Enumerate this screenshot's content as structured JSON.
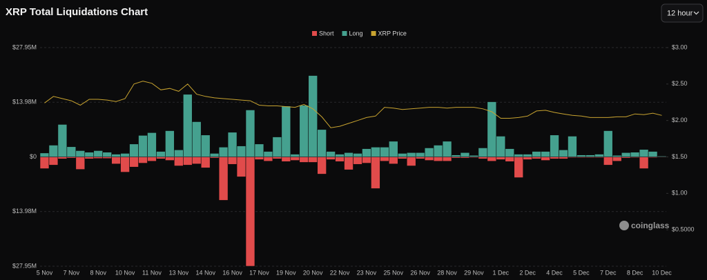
{
  "chart_data": {
    "type": "bar",
    "title": "XRP Total Liquidations Chart",
    "interval": "12 hour",
    "watermark": "coinglass",
    "grid": true,
    "legend": "top",
    "categories": [
      "5 Nov",
      null,
      null,
      "7 Nov",
      null,
      null,
      "8 Nov",
      null,
      null,
      "10 Nov",
      null,
      null,
      "11 Nov",
      null,
      null,
      "13 Nov",
      null,
      null,
      "14 Nov",
      null,
      null,
      "16 Nov",
      null,
      null,
      "17 Nov",
      null,
      null,
      "19 Nov",
      null,
      null,
      "20 Nov",
      null,
      null,
      "22 Nov",
      null,
      null,
      "23 Nov",
      null,
      null,
      "25 Nov",
      null,
      null,
      "26 Nov",
      null,
      null,
      "28 Nov",
      null,
      null,
      "29 Nov",
      null,
      null,
      "1 Dec",
      null,
      null,
      "2 Dec",
      null,
      null,
      "4 Dec",
      null,
      null,
      "5 Dec",
      null,
      null,
      "7 Dec",
      null,
      null,
      "8 Dec",
      null,
      null,
      "10 Dec"
    ],
    "series": [
      {
        "name": "Short",
        "color": "#e14b4b",
        "values": [
          -3.0,
          -2.1,
          -0.5,
          -0.3,
          -3.2,
          -0.5,
          -0.4,
          -0.4,
          -1.8,
          -3.9,
          -2.6,
          -1.6,
          -1.1,
          -0.5,
          -0.9,
          -2.3,
          -2.1,
          -1.8,
          -2.8,
          -0.3,
          -11.1,
          -1.9,
          -5.1,
          -27.95,
          -0.7,
          -1.1,
          -0.5,
          -1.2,
          -0.9,
          -1.4,
          -1.4,
          -4.4,
          -0.7,
          -1.2,
          -3.3,
          -1.9,
          -1.6,
          -8.1,
          -1.1,
          -1.8,
          -0.5,
          -2.3,
          -0.5,
          -0.9,
          -1.1,
          -1.1,
          -0.3,
          -0.3,
          -0.2,
          -0.5,
          -1.1,
          -0.7,
          -1.2,
          -5.3,
          -0.7,
          -0.5,
          -0.9,
          -0.5,
          -0.5,
          -0.2,
          -0.2,
          -0.2,
          -0.2,
          -2.1,
          -1.1,
          -0.3,
          -0.2,
          -3.0,
          -0.2,
          -0.1
        ]
      },
      {
        "name": "Long",
        "color": "#45a18f",
        "values": [
          1.0,
          3.0,
          8.3,
          2.6,
          1.6,
          1.2,
          1.6,
          1.2,
          0.7,
          0.9,
          3.3,
          5.5,
          6.2,
          1.4,
          6.7,
          1.8,
          16.0,
          9.0,
          5.6,
          0.9,
          2.5,
          6.3,
          2.8,
          12.0,
          3.3,
          1.4,
          5.1,
          13.0,
          0.7,
          13.2,
          20.8,
          7.0,
          1.4,
          0.7,
          1.1,
          0.9,
          2.1,
          2.5,
          2.5,
          4.0,
          0.9,
          1.1,
          1.1,
          2.3,
          3.0,
          4.0,
          0.5,
          1.1,
          0.4,
          2.3,
          14.1,
          5.3,
          2.1,
          0.7,
          0.7,
          1.4,
          1.4,
          5.6,
          1.8,
          5.3,
          0.5,
          0.5,
          0.7,
          6.7,
          0.4,
          1.1,
          1.2,
          1.9,
          1.4,
          0.2
        ]
      },
      {
        "name": "XRP Price",
        "color": "#c9a430",
        "type": "line",
        "axis": "y2",
        "values": [
          2.24,
          2.33,
          2.3,
          2.27,
          2.21,
          2.29,
          2.29,
          2.28,
          2.26,
          2.3,
          2.5,
          2.54,
          2.51,
          2.42,
          2.44,
          2.4,
          2.5,
          2.36,
          2.33,
          2.31,
          2.3,
          2.29,
          2.28,
          2.27,
          2.21,
          2.2,
          2.2,
          2.19,
          2.18,
          2.22,
          2.16,
          2.05,
          1.9,
          1.92,
          1.96,
          2.0,
          2.04,
          2.06,
          2.18,
          2.17,
          2.15,
          2.16,
          2.17,
          2.18,
          2.18,
          2.17,
          2.18,
          2.18,
          2.18,
          2.16,
          2.12,
          2.03,
          2.03,
          2.04,
          2.06,
          2.13,
          2.14,
          2.11,
          2.09,
          2.07,
          2.06,
          2.04,
          2.04,
          2.04,
          2.05,
          2.05,
          2.09,
          2.08,
          2.1,
          2.07
        ]
      }
    ],
    "ylim": [
      -27.95,
      27.95
    ],
    "yticks": [
      {
        "value": 27.95,
        "label": "$27.95M"
      },
      {
        "value": 13.98,
        "label": "$13.98M"
      },
      {
        "value": 0,
        "label": "$0"
      },
      {
        "value": -13.98,
        "label": "$13.98M"
      },
      {
        "value": -27.95,
        "label": "$27.95M"
      }
    ],
    "y2lim": [
      0,
      3
    ],
    "y2ticks": [
      {
        "value": 3,
        "label": "$3.00"
      },
      {
        "value": 2.5,
        "label": "$2.50"
      },
      {
        "value": 2,
        "label": "$2.00"
      },
      {
        "value": 1.5,
        "label": "$1.50"
      },
      {
        "value": 1,
        "label": "$1.00"
      },
      {
        "value": 0.5,
        "label": "$0.5000"
      }
    ]
  }
}
